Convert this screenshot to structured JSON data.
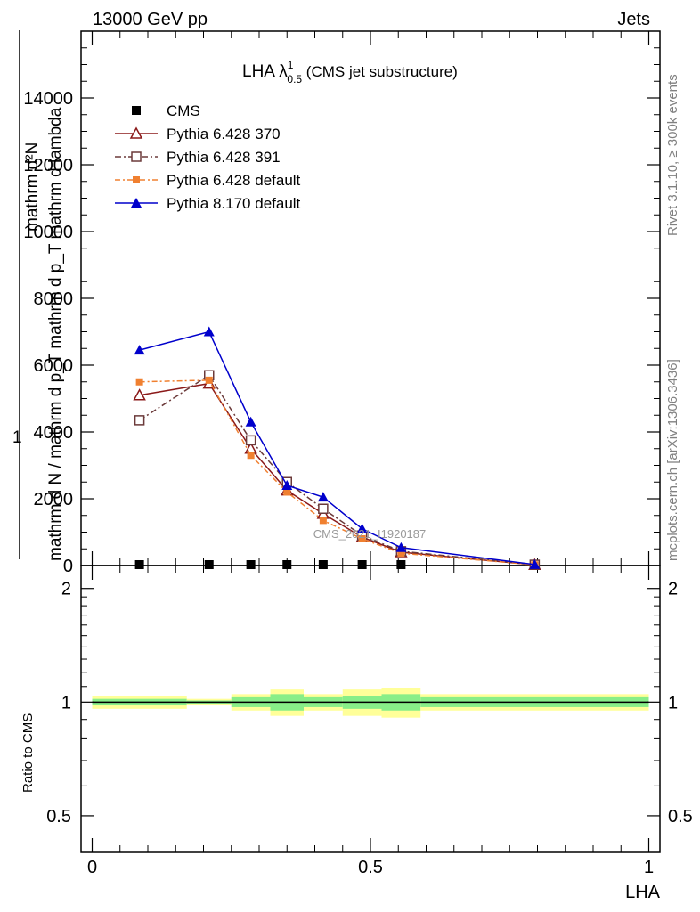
{
  "header": {
    "left": "13000 GeV pp",
    "right": "Jets"
  },
  "side_labels": {
    "rivet": "Rivet 3.1.10, ≥ 300k events",
    "mcplots": "mcplots.cern.ch [arXiv:1306.3436]"
  },
  "title": {
    "main": "LHA λ",
    "sup": "1",
    "sub": "0.5",
    "suffix": " (CMS jet substructure)"
  },
  "watermark": "CMS_2021_I1920187",
  "ylabel_top": {
    "numerator": "mathrm d²N",
    "prefix": "1",
    "frac_num": "mathrm d²N",
    "frac_den": "mathrm d N / mathrm d p",
    "frac_den_sub": "T",
    "frac_tail": " mathrm d p",
    "frac_tail_sub": "T",
    "frac_tail2": " mathrm d lambda",
    "line1": "mathrm d²N",
    "line2": "mathrm d N / mathrm d p_T mathrm d p_T mathrm d lambda"
  },
  "ylabel_bottom": "Ratio to CMS",
  "xlabel": "LHA",
  "chart_data": [
    {
      "type": "line",
      "panel": "main",
      "ylim": [
        0,
        16000
      ],
      "xlim": [
        -0.02,
        1.02
      ],
      "y_ticks": [
        0,
        2000,
        4000,
        6000,
        8000,
        10000,
        12000,
        14000
      ],
      "y_tick_labels": [
        "0",
        "2000",
        "4000",
        "6000",
        "8000",
        "10000",
        "12000",
        "14000"
      ],
      "series": [
        {
          "name": "CMS",
          "style": "data",
          "color": "#000000",
          "x": [
            0.085,
            0.21,
            0.285,
            0.35,
            0.415,
            0.485,
            0.555,
            0.795
          ],
          "y": [
            10,
            15,
            12,
            10,
            8,
            6,
            4,
            1
          ]
        },
        {
          "name": "Pythia 6.428 370",
          "style": "triangle-open",
          "color": "#8b1a1a",
          "x": [
            0.085,
            0.21,
            0.285,
            0.35,
            0.415,
            0.485,
            0.555,
            0.795
          ],
          "y": [
            5100,
            5450,
            3500,
            2250,
            1550,
            850,
            400,
            20
          ]
        },
        {
          "name": "Pythia 6.428 391",
          "style": "square-open",
          "color": "#6b3a3a",
          "x": [
            0.085,
            0.21,
            0.285,
            0.35,
            0.415,
            0.485,
            0.555,
            0.795
          ],
          "y": [
            4350,
            5700,
            3750,
            2500,
            1700,
            900,
            430,
            25
          ]
        },
        {
          "name": "Pythia 6.428 default",
          "style": "square-filled",
          "color": "#f08030",
          "x": [
            0.085,
            0.21,
            0.285,
            0.35,
            0.415,
            0.485,
            0.555,
            0.795
          ],
          "y": [
            5500,
            5550,
            3300,
            2200,
            1350,
            800,
            370,
            20
          ]
        },
        {
          "name": "Pythia 8.170 default",
          "style": "triangle-filled",
          "color": "#0000cc",
          "x": [
            0.085,
            0.21,
            0.285,
            0.35,
            0.415,
            0.485,
            0.555,
            0.795
          ],
          "y": [
            6450,
            7000,
            4300,
            2400,
            2050,
            1100,
            540,
            30
          ]
        }
      ]
    },
    {
      "type": "area",
      "panel": "ratio",
      "ylabel": "Ratio to CMS",
      "xlabel": "LHA",
      "ylim": [
        0.4,
        2.3
      ],
      "y_ticks": [
        0.5,
        1,
        2
      ],
      "y_tick_labels": [
        "0.5",
        "1",
        "2"
      ],
      "x_ticks": [
        0,
        0.5,
        1
      ],
      "x_tick_labels": [
        "0",
        "0.5",
        "1"
      ],
      "bin_edges": [
        0.0,
        0.17,
        0.25,
        0.32,
        0.38,
        0.45,
        0.52,
        0.59,
        1.0
      ],
      "outer_band": {
        "color": "#ffff99",
        "lo": [
          0.96,
          0.98,
          0.95,
          0.92,
          0.95,
          0.92,
          0.91,
          0.95
        ],
        "hi": [
          1.04,
          1.02,
          1.05,
          1.08,
          1.05,
          1.08,
          1.09,
          1.05
        ]
      },
      "inner_band": {
        "color": "#88ee88",
        "lo": [
          0.98,
          0.99,
          0.97,
          0.95,
          0.97,
          0.96,
          0.95,
          0.97
        ],
        "hi": [
          1.02,
          1.01,
          1.03,
          1.05,
          1.03,
          1.04,
          1.05,
          1.03
        ]
      },
      "reference_line": 1
    }
  ]
}
